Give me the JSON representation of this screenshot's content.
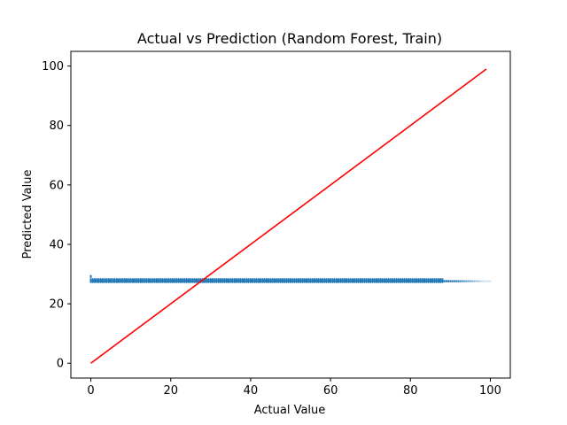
{
  "chart_data": {
    "type": "scatter",
    "title": "Actual vs Prediction (Random Forest, Train)",
    "xlabel": "Actual Value",
    "ylabel": "Predicted Value",
    "xlim": [
      -5,
      105
    ],
    "ylim": [
      -5,
      104.95
    ],
    "xticks": [
      0,
      20,
      40,
      60,
      80,
      100
    ],
    "yticks": [
      0,
      20,
      40,
      60,
      80,
      100
    ],
    "grid": false,
    "legend": "none",
    "series": [
      {
        "kind": "scatter",
        "color": "#1f77b4",
        "x_range": [
          0,
          100
        ],
        "y_values": [
          27.3,
          27.5,
          27.7,
          28.0,
          28.3
        ],
        "y_outliers": [
          {
            "x": 0,
            "y": 29.0
          },
          {
            "x": 0,
            "y": 29.4
          }
        ],
        "dense_until": 88,
        "fade_until": 100
      },
      {
        "kind": "line",
        "color": "#ff0000",
        "x": [
          0,
          99
        ],
        "y": [
          0,
          99
        ]
      }
    ]
  }
}
